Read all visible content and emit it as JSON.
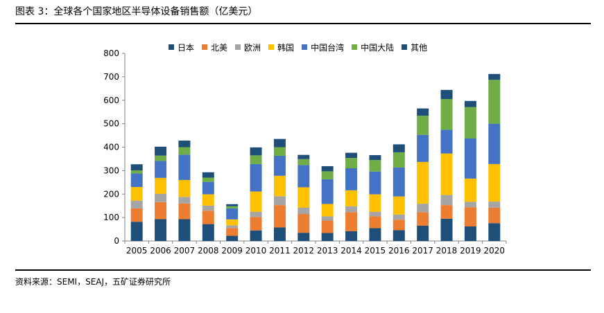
{
  "header": {
    "title": "图表 3：全球各个国家地区半导体设备销售额（亿美元）"
  },
  "footer": {
    "source": "资料来源：SEMI，SEAJ，五矿证券研究所"
  },
  "chart_data": {
    "type": "bar",
    "stacked": true,
    "title": "",
    "xlabel": "",
    "ylabel": "",
    "ylim": [
      0,
      800
    ],
    "yticks": [
      0,
      100,
      200,
      300,
      400,
      500,
      600,
      700,
      800
    ],
    "grid": false,
    "legend_position": "top",
    "categories": [
      "2005",
      "2006",
      "2007",
      "2008",
      "2009",
      "2010",
      "2011",
      "2012",
      "2013",
      "2014",
      "2015",
      "2016",
      "2017",
      "2018",
      "2019",
      "2020"
    ],
    "series": [
      {
        "name": "日本",
        "color": "#1F4E79",
        "values": [
          82,
          93,
          93,
          72,
          22,
          45,
          58,
          35,
          34,
          42,
          55,
          46,
          65,
          95,
          62,
          76
        ]
      },
      {
        "name": "北美",
        "color": "#ED7D31",
        "values": [
          57,
          73,
          67,
          57,
          33,
          57,
          95,
          80,
          53,
          81,
          50,
          45,
          58,
          58,
          82,
          66
        ]
      },
      {
        "name": "欧洲",
        "color": "#A5A5A5",
        "values": [
          33,
          35,
          28,
          22,
          12,
          22,
          38,
          27,
          18,
          25,
          19,
          22,
          36,
          43,
          23,
          26
        ]
      },
      {
        "name": "韩国",
        "color": "#FFC000",
        "values": [
          58,
          68,
          72,
          48,
          25,
          87,
          87,
          87,
          53,
          68,
          75,
          77,
          178,
          177,
          99,
          160
        ]
      },
      {
        "name": "中国台湾",
        "color": "#4472C4",
        "values": [
          58,
          72,
          108,
          53,
          47,
          117,
          85,
          95,
          105,
          94,
          97,
          123,
          115,
          101,
          171,
          172
        ]
      },
      {
        "name": "中国大陆",
        "color": "#70AD47",
        "values": [
          13,
          23,
          32,
          18,
          9,
          37,
          37,
          25,
          34,
          44,
          49,
          65,
          82,
          131,
          134,
          187
        ]
      },
      {
        "name": "其他",
        "color": "#1F4E79",
        "values": [
          26,
          38,
          28,
          23,
          9,
          34,
          35,
          18,
          22,
          22,
          21,
          34,
          31,
          39,
          26,
          25
        ]
      }
    ]
  }
}
